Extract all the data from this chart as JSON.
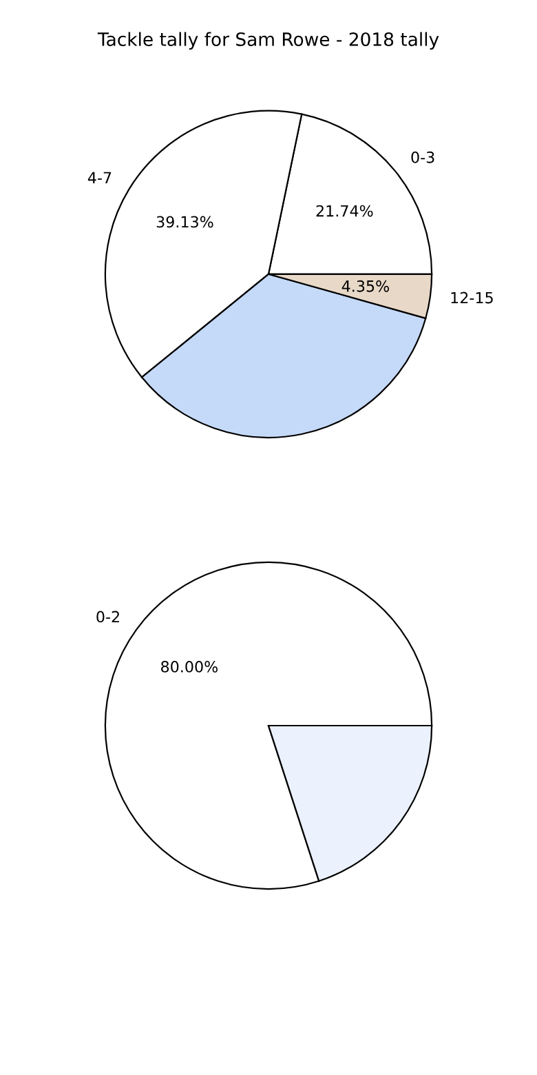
{
  "chart_data": [
    {
      "type": "pie",
      "title": "Tackle tally for Sam Rowe - 2018 tally",
      "categories": [
        "0-3",
        "4-7",
        null,
        "12-15"
      ],
      "values": [
        21.74,
        39.13,
        34.78,
        4.35
      ],
      "colors": [
        "#ffffff",
        "#ffffff",
        "#c5d9f8",
        "#e8d8c8"
      ],
      "value_labels": [
        "21.74%",
        "39.13%",
        null,
        "4.35%"
      ]
    },
    {
      "type": "pie",
      "categories": [
        "0-2",
        null
      ],
      "values": [
        80,
        20
      ],
      "colors": [
        "#ffffff",
        "#ebf1fd"
      ],
      "value_labels": [
        "80.00%",
        null
      ]
    }
  ]
}
